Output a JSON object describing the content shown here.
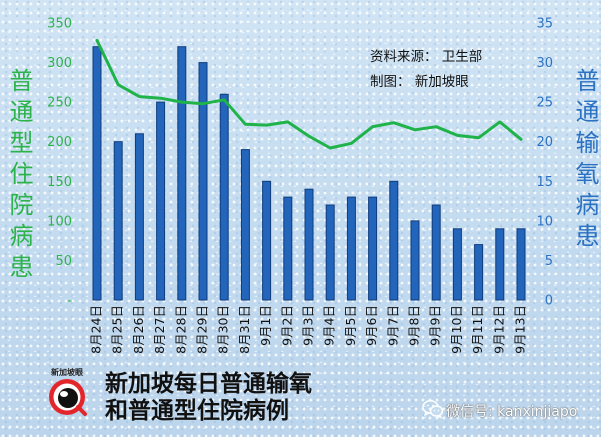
{
  "chart_data": {
    "type": "bar",
    "categories": [
      "8月24日",
      "8月25日",
      "8月26日",
      "8月27日",
      "8月28日",
      "8月29日",
      "8月30日",
      "8月31日",
      "9月1日",
      "9月2日",
      "9月3日",
      "9月4日",
      "9月5日",
      "9月6日",
      "9月7日",
      "9月8日",
      "9月9日",
      "9月10日",
      "9月11日",
      "9月12日",
      "9月13日"
    ],
    "series": [
      {
        "type": "bar",
        "axis": "right",
        "values": [
          32,
          20,
          21,
          25,
          32,
          30,
          26,
          19,
          15,
          13,
          14,
          12,
          13,
          13,
          15,
          10,
          12,
          9,
          7,
          9,
          9
        ]
      },
      {
        "type": "line",
        "axis": "left",
        "values": [
          328,
          272,
          257,
          255,
          250,
          248,
          253,
          222,
          221,
          225,
          207,
          192,
          198,
          219,
          224,
          215,
          219,
          208,
          205,
          225,
          203
        ]
      }
    ],
    "title": [
      "新加坡每日普通输氧",
      "和普通型住院病例"
    ],
    "xlabel": "",
    "ylabel": "普通型住院病患",
    "y2label": "普通输氧病患",
    "ylim": [
      0,
      350
    ],
    "y2lim": [
      0,
      35
    ],
    "yticks": [
      0,
      50,
      100,
      150,
      200,
      250,
      300,
      350
    ],
    "ytick_labels": [
      "-",
      "50",
      "100",
      "150",
      "200",
      "250",
      "300",
      "350"
    ],
    "y2ticks": [
      0,
      5,
      10,
      15,
      20,
      25,
      30,
      35
    ],
    "y2tick_labels": [
      "0",
      "5",
      "10",
      "15",
      "20",
      "25",
      "30",
      "35"
    ],
    "grid": false,
    "legend": "none",
    "annotations": [
      "资料来源： 卫生部",
      "制图： 新加坡眼"
    ]
  },
  "branding": {
    "logo_text": "新加坡眼",
    "logo_icon": "eye-logo",
    "watermark_icon": "wechat-icon",
    "watermark_text": "微信号: kanxinjiapo"
  },
  "colors": {
    "line": "#1fb34a",
    "bar": "#2365bb",
    "bar_edge": "#0f3c7c",
    "left_axis": "#2db34b",
    "right_axis": "#2c72c2",
    "background": "#c6ddf0",
    "logo_red": "#e3262b"
  }
}
